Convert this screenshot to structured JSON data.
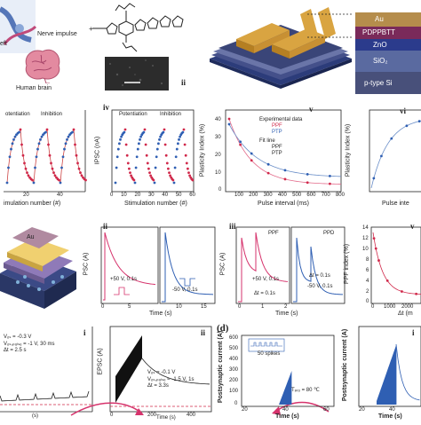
{
  "top": {
    "nerve_label": "Nerve impulse",
    "brain_label": "Human brain",
    "left_fragment": "eft",
    "panel_ii": "ii",
    "layers": [
      "Au",
      "PDPPBTT",
      "ZnO",
      "SiO₂",
      "p-type Si"
    ]
  },
  "row2": {
    "p1": {
      "legend": [
        "otentiation",
        "Inhibition"
      ],
      "xlabel": "imulation number (#)",
      "xticks": [
        "20",
        "40"
      ]
    },
    "p2": {
      "id": "iv",
      "legend": [
        "Potentiation",
        "Inhibition"
      ],
      "ylabel": "IPSC (nA)",
      "xlabel": "Stimulation number (#)",
      "xticks": [
        "0",
        "10",
        "20",
        "30",
        "40",
        "50",
        "60"
      ]
    },
    "p3": {
      "id": "v",
      "ylabel": "Plasticity Index (%)",
      "xlabel": "Pulse interval (ms)",
      "legend_title": "Experimental data",
      "legend": [
        "PPF",
        "PTP"
      ],
      "fit_title": "Fit line",
      "fit_legend": [
        "PPF",
        "PTP"
      ],
      "yticks": [
        "0",
        "10",
        "20",
        "30",
        "40"
      ],
      "xticks": [
        "100",
        "200",
        "300",
        "400",
        "500",
        "600",
        "700",
        "800"
      ]
    },
    "p4": {
      "id": "vi",
      "ylabel": "Plasticity Index (%)",
      "xlabel": "Pulse inte"
    }
  },
  "row3": {
    "device_label": "Au",
    "p_ii": {
      "id": "ii",
      "ylabel": "PSC (A)",
      "xlabel": "Time (s)",
      "pulse1": "+50 V, 0.1s",
      "pulse2": "-50 V, 0.1s",
      "xticks": [
        "0",
        "5",
        "10",
        "15"
      ]
    },
    "p_iii": {
      "id": "iii",
      "ylabel": "PSC (A)",
      "xlabel": "Time (s)",
      "tag1": "PPF",
      "tag2": "PPD",
      "pulse1": "+50 V, 0.1s",
      "dt1": "Δt = 0.1s",
      "pulse2": "-50 V, 0.1s",
      "dt2": "Δt = 0.1s",
      "xticks": [
        "0",
        "1",
        "2"
      ]
    },
    "p_v": {
      "id": "v",
      "ylabel": "PPF index (%)",
      "xlabel": "Δt (m",
      "yticks": [
        "0",
        "2",
        "4",
        "6",
        "8",
        "10",
        "12",
        "14"
      ],
      "xticks": [
        "0",
        "1000",
        "2000"
      ]
    }
  },
  "row4": {
    "left": {
      "id": "i",
      "l1": "Vₒₛ = -0.3 V",
      "l2": "Vₒₛ,ₚᵤₗₛₑ = -1 V, 30 ms",
      "l3": "Δt = 2.5 s",
      "xlabel": "(s)"
    },
    "mid": {
      "id": "ii",
      "ylabel": "EPSC (A)",
      "l1": "Vₒₛ = -0.1 V",
      "l2": "Vₒₛ,ₚᵤₗₛₑ = -1.5 V, 1s",
      "l3": "Δt = 3.3s",
      "xlabel": "Time (s)",
      "xticks": [
        "0",
        "200",
        "400"
      ]
    },
    "d": {
      "id": "(d)",
      "ylabel": "Postsynaptic current (A)",
      "spikes": "50 spikes",
      "temp": "Tₚᵣₒ = 80 ℃",
      "xlabel": "Time (s)",
      "xticks": [
        "20",
        "40",
        "60"
      ],
      "yticks": [
        "0",
        "100",
        "200",
        "300",
        "400",
        "500",
        "600"
      ]
    },
    "right": {
      "id": "i",
      "ylabel": "Postsynaptic current (A)",
      "xlabel": "Time (s)",
      "xticks": [
        "20",
        "40"
      ]
    }
  },
  "colors": {
    "blue": "#2f5fb3",
    "red": "#d0284a",
    "pink": "#d6336c",
    "gold": "#d9a441"
  }
}
